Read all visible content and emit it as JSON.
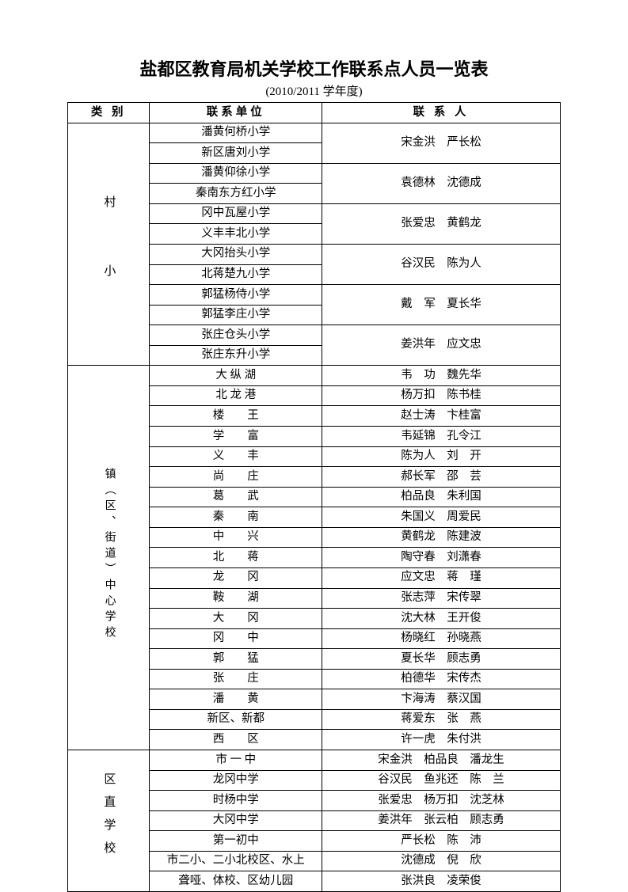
{
  "title": "盐都区教育局机关学校工作联系点人员一览表",
  "subtitle": "(2010/2011 学年度)",
  "headers": {
    "category": "类 别",
    "unit": "联系单位",
    "person": "联 系 人"
  },
  "section1": {
    "label": "村　　小",
    "groups": [
      {
        "units": [
          "潘黄何桥小学",
          "新区唐刘小学"
        ],
        "person": "宋金洪　严长松"
      },
      {
        "units": [
          "潘黄仰徐小学",
          "秦南东方红小学"
        ],
        "person": "袁德林　沈德成"
      },
      {
        "units": [
          "冈中瓦屋小学",
          "义丰丰北小学"
        ],
        "person": "张爱忠　黄鹤龙"
      },
      {
        "units": [
          "大冈抬头小学",
          "北蒋楚九小学"
        ],
        "person": "谷汉民　陈为人"
      },
      {
        "units": [
          "郭猛杨侍小学",
          "郭猛李庄小学"
        ],
        "person": "戴　军　夏长华"
      },
      {
        "units": [
          "张庄仓头小学",
          "张庄东升小学"
        ],
        "person": "姜洪年　应文忠"
      }
    ]
  },
  "section2": {
    "label": "镇（区、街道）中心学校",
    "rows": [
      {
        "unit": "大 纵 湖",
        "person": "韦　功　魏先华"
      },
      {
        "unit": "北 龙 港",
        "person": "杨万扣　陈书桂"
      },
      {
        "unit": "楼　　王",
        "person": "赵士涛　卞桂富"
      },
      {
        "unit": "学　　富",
        "person": "韦延锦　孔令江"
      },
      {
        "unit": "义　　丰",
        "person": "陈为人　刘　开"
      },
      {
        "unit": "尚　　庄",
        "person": "郝长军　邵　芸"
      },
      {
        "unit": "葛　　武",
        "person": "柏品良　朱利国"
      },
      {
        "unit": "秦　　南",
        "person": "朱国义　周爱民"
      },
      {
        "unit": "中　　兴",
        "person": "黄鹤龙　陈建波"
      },
      {
        "unit": "北　　蒋",
        "person": "陶守春　刘潇春"
      },
      {
        "unit": "龙　　冈",
        "person": "应文忠　蒋　瑾"
      },
      {
        "unit": "鞍　　湖",
        "person": "张志萍　宋传翠"
      },
      {
        "unit": "大　　冈",
        "person": "沈大林　王开俊"
      },
      {
        "unit": "冈　　中",
        "person": "杨晓红　孙晓燕"
      },
      {
        "unit": "郭　　猛",
        "person": "夏长华　顾志勇"
      },
      {
        "unit": "张　　庄",
        "person": "柏德华　宋传杰"
      },
      {
        "unit": "潘　　黄",
        "person": "卞海涛　蔡汉国"
      },
      {
        "unit": "新区、新都",
        "person": "蒋爱东　张　燕"
      },
      {
        "unit": "西　　区",
        "person": "许一虎　朱付洪"
      }
    ]
  },
  "section3": {
    "label": "区直学校",
    "rows": [
      {
        "unit": "市 一 中",
        "person": "宋金洪　柏品良　潘龙生"
      },
      {
        "unit": "龙冈中学",
        "person": "谷汉民　鱼兆还　陈　兰"
      },
      {
        "unit": "时杨中学",
        "person": "张爱忠　杨万扣　沈芝林"
      },
      {
        "unit": "大冈中学",
        "person": "姜洪年　张云柏　顾志勇"
      },
      {
        "unit": "第一初中",
        "person": "严长松　陈　沛"
      },
      {
        "unit": "市二小、二小北校区、水上",
        "person": "沈德成　倪　欣"
      },
      {
        "unit": "聋哑、体校、区幼儿园",
        "person": "张洪良　凌荣俊"
      }
    ]
  }
}
